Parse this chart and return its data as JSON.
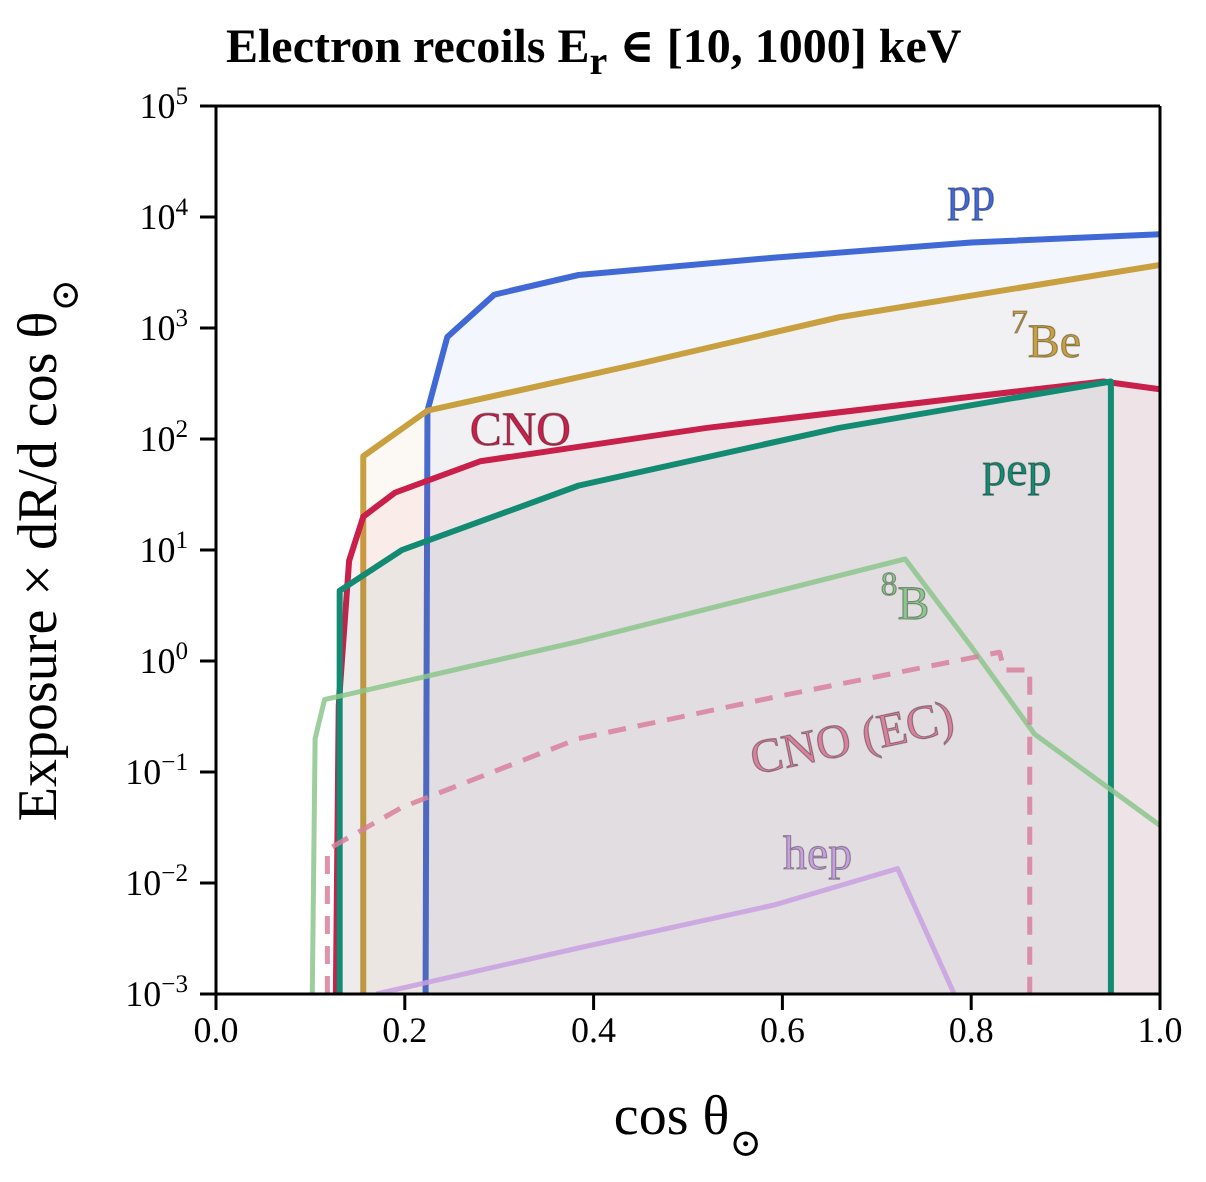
{
  "chart_data": {
    "type": "area",
    "title": "Electron recoils E$_{r}$ ∈ [10, 1000] keV",
    "xlabel": "cos θ$_{⊙}$",
    "ylabel": "Exposure × dR/d cos θ$_{⊙}$",
    "log": "y",
    "grid": false,
    "legend": false,
    "xlim": [
      0,
      1
    ],
    "xticks": [
      {
        "value": 0,
        "label": "0.0"
      },
      {
        "value": 0.2,
        "label": "0.2"
      },
      {
        "value": 0.4,
        "label": "0.4"
      },
      {
        "value": 0.6,
        "label": "0.6"
      },
      {
        "value": 0.8,
        "label": "0.8"
      },
      {
        "value": 1,
        "label": "1.0"
      }
    ],
    "ylim": [
      0.001,
      100000
    ],
    "yticks": [
      {
        "value": 0.001,
        "label": "10$^{−3}$"
      },
      {
        "value": 0.01,
        "label": "10$^{−2}$"
      },
      {
        "value": 0.1,
        "label": "10$^{−1}$"
      },
      {
        "value": 1,
        "label": "10$^{0}$"
      },
      {
        "value": 10,
        "label": "10$^{1}$"
      },
      {
        "value": 100,
        "label": "10$^{2}$"
      },
      {
        "value": 1000,
        "label": "10$^{3}$"
      },
      {
        "value": 10000,
        "label": "10$^{4}$"
      },
      {
        "value": 100000,
        "label": "10$^{5}$"
      }
    ],
    "series": [
      {
        "name": "pp",
        "color": "#4169d6",
        "x": [
          0.222,
          0.224,
          0.245,
          0.295,
          0.384,
          0.59,
          0.8,
          1.0
        ],
        "values": [
          0.001,
          180,
          830,
          2000,
          3000,
          4300,
          5900,
          7000
        ]
      },
      {
        "name": "$^{7}$Be",
        "color": "#c9a040",
        "x": [
          0.156,
          0.156,
          0.224,
          0.45,
          0.66,
          1.0
        ],
        "values": [
          0.001,
          70,
          180,
          480,
          1250,
          3700
        ]
      },
      {
        "name": "CNO",
        "color": "#c8204a",
        "x": [
          0.127,
          0.13,
          0.141,
          0.156,
          0.19,
          0.28,
          0.52,
          0.8,
          0.94,
          1.0
        ],
        "values": [
          0.001,
          0.4,
          8,
          20,
          33,
          63,
          126,
          240,
          330,
          280
        ]
      },
      {
        "name": "pep",
        "color": "#138a72",
        "x": [
          0.131,
          0.131,
          0.197,
          0.384,
          0.66,
          0.948,
          0.948
        ],
        "values": [
          0.001,
          4.3,
          10,
          38,
          126,
          330,
          0.001
        ]
      },
      {
        "name": "$^{8}$B",
        "type": "line",
        "color": "#8cc68c",
        "x": [
          0.102,
          0.105,
          0.115,
          0.135,
          0.384,
          0.73,
          0.8,
          0.867,
          1.0
        ],
        "values": [
          0.001,
          0.2,
          0.45,
          0.49,
          1.5,
          8.3,
          1.35,
          0.22,
          0.033
        ]
      },
      {
        "name": "CNO (EC)",
        "type": "line",
        "line_style": "dashed",
        "color": "#d8809c",
        "x": [
          0.118,
          0.118,
          0.197,
          0.384,
          0.59,
          0.83,
          0.835,
          0.862,
          0.862
        ],
        "values": [
          0.001,
          0.02,
          0.048,
          0.2,
          0.47,
          1.2,
          0.83,
          0.83,
          0.001
        ]
      },
      {
        "name": "hep",
        "type": "line",
        "color": "#c8a0e0",
        "x": [
          0.17,
          0.384,
          0.59,
          0.722,
          0.782
        ],
        "values": [
          0.001,
          0.0026,
          0.0063,
          0.0135,
          0.001
        ]
      }
    ]
  }
}
